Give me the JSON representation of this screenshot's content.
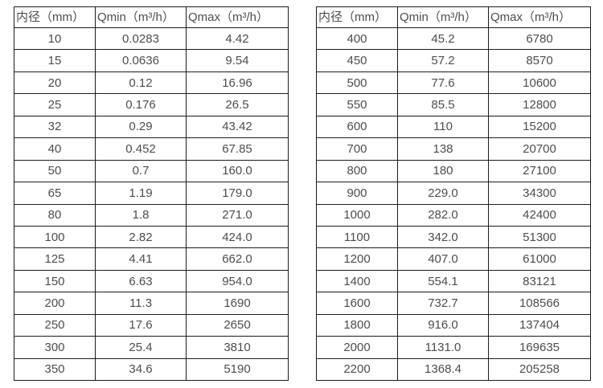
{
  "colors": {
    "border": "#1c1c1c",
    "text": "#4d4d4d",
    "background": "#ffffff"
  },
  "tables": [
    {
      "name": "flow-table-small-diameters",
      "headers": [
        "内径（mm）",
        "Qmin（m³/h）",
        "Qmax（m³/h）"
      ],
      "rows": [
        [
          "10",
          "0.0283",
          "4.42"
        ],
        [
          "15",
          "0.0636",
          "9.54"
        ],
        [
          "20",
          "0.12",
          "16.96"
        ],
        [
          "25",
          "0.176",
          "26.5"
        ],
        [
          "32",
          "0.29",
          "43.42"
        ],
        [
          "40",
          "0.452",
          "67.85"
        ],
        [
          "50",
          "0.7",
          "160.0"
        ],
        [
          "65",
          "1.19",
          "179.0"
        ],
        [
          "80",
          "1.8",
          "271.0"
        ],
        [
          "100",
          "2.82",
          "424.0"
        ],
        [
          "125",
          "4.41",
          "662.0"
        ],
        [
          "150",
          "6.63",
          "954.0"
        ],
        [
          "200",
          "11.3",
          "1690"
        ],
        [
          "250",
          "17.6",
          "2650"
        ],
        [
          "300",
          "25.4",
          "3810"
        ],
        [
          "350",
          "34.6",
          "5190"
        ]
      ]
    },
    {
      "name": "flow-table-large-diameters",
      "headers": [
        "内径（mm）",
        "Qmin（m³/h）",
        "Qmax（m³/h）"
      ],
      "rows": [
        [
          "400",
          "45.2",
          "6780"
        ],
        [
          "450",
          "57.2",
          "8570"
        ],
        [
          "500",
          "77.6",
          "10600"
        ],
        [
          "550",
          "85.5",
          "12800"
        ],
        [
          "600",
          "110",
          "15200"
        ],
        [
          "700",
          "138",
          "20700"
        ],
        [
          "800",
          "180",
          "27100"
        ],
        [
          "900",
          "229.0",
          "34300"
        ],
        [
          "1000",
          "282.0",
          "42400"
        ],
        [
          "1100",
          "342.0",
          "51300"
        ],
        [
          "1200",
          "407.0",
          "61000"
        ],
        [
          "1400",
          "554.1",
          "83121"
        ],
        [
          "1600",
          "732.7",
          "108566"
        ],
        [
          "1800",
          "916.0",
          "137404"
        ],
        [
          "2000",
          "1131.0",
          "169635"
        ],
        [
          "2200",
          "1368.4",
          "205258"
        ]
      ]
    }
  ]
}
